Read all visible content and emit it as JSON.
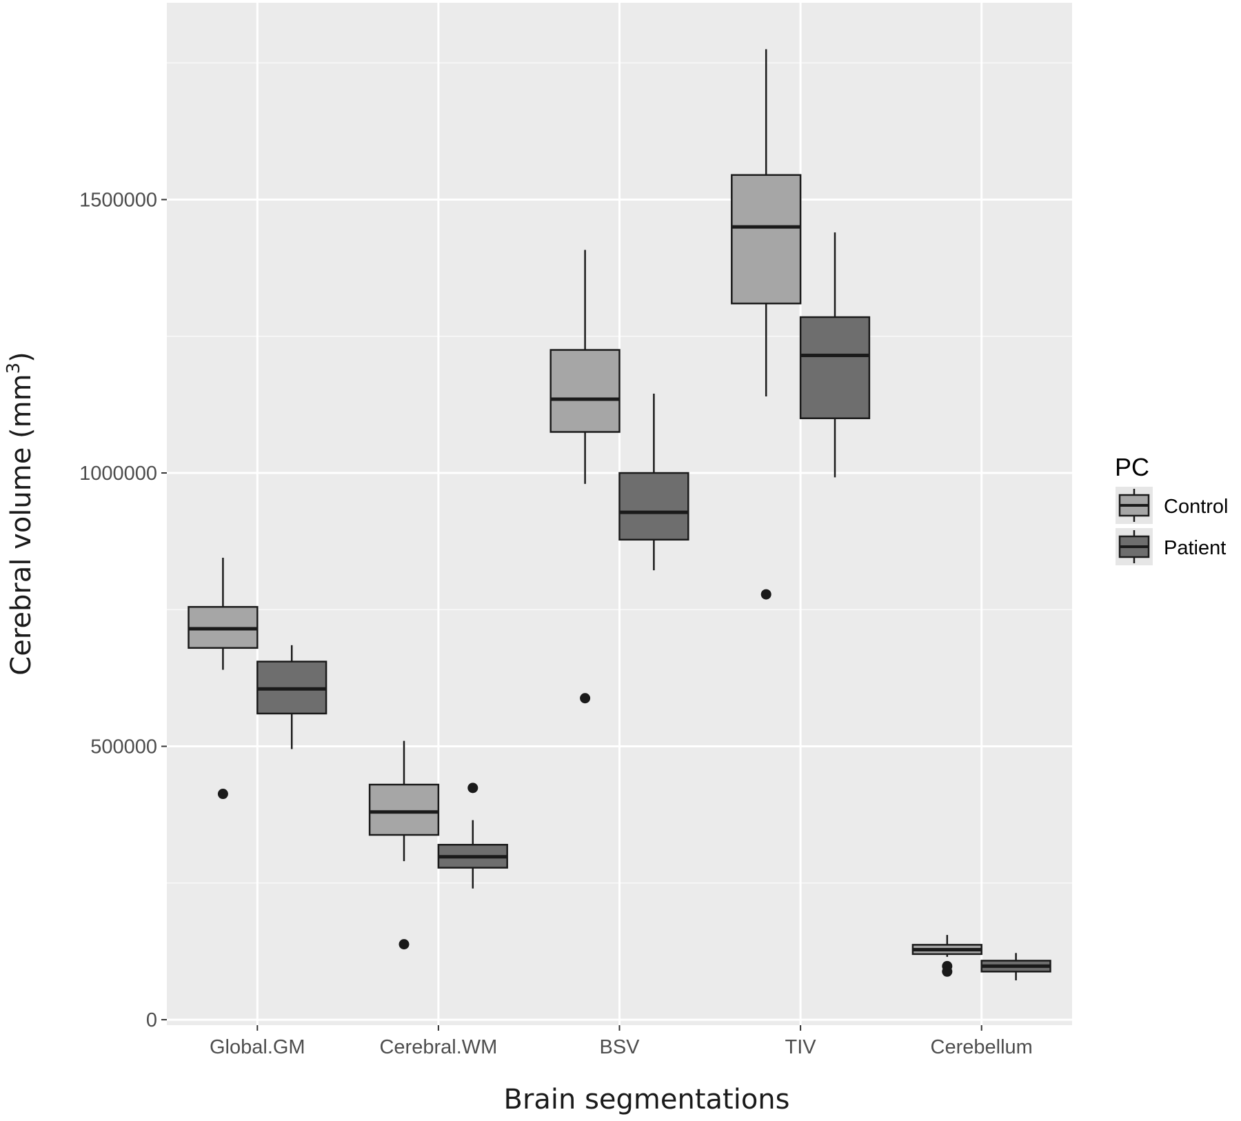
{
  "chart_data": {
    "type": "boxplot",
    "title": "",
    "xlabel": "Brain segmentations",
    "ylabel": "Cerebral volume (mm",
    "ylabel_superscript": "3",
    "ylabel_suffix": ")",
    "categories": [
      "Global.GM",
      "Cerebral.WM",
      "BSV",
      "TIV",
      "Cerebellum"
    ],
    "y_ticks": [
      0,
      500000,
      1000000,
      1500000
    ],
    "y_tick_labels": [
      "0",
      "500000",
      "1000000",
      "1500000"
    ],
    "ylim": [
      -10000,
      1860000
    ],
    "grid": true,
    "legend": {
      "title": "PC",
      "position": "right"
    },
    "colors": {
      "panel": "#ebebeb",
      "grid": "#ffffff",
      "Control": "#a6a6a6",
      "Patient": "#6e6e6e",
      "stroke": "#1a1a1a"
    },
    "series": [
      {
        "name": "Control",
        "boxes": [
          {
            "category": "Global.GM",
            "whisker_low": 640000,
            "q1": 680000,
            "median": 715000,
            "q3": 755000,
            "whisker_high": 845000,
            "outliers": [
              413000
            ]
          },
          {
            "category": "Cerebral.WM",
            "whisker_low": 290000,
            "q1": 338000,
            "median": 380000,
            "q3": 430000,
            "whisker_high": 510000,
            "outliers": [
              138000
            ]
          },
          {
            "category": "BSV",
            "whisker_low": 980000,
            "q1": 1075000,
            "median": 1135000,
            "q3": 1225000,
            "whisker_high": 1408000,
            "outliers": [
              588000
            ]
          },
          {
            "category": "TIV",
            "whisker_low": 1140000,
            "q1": 1310000,
            "median": 1450000,
            "q3": 1545000,
            "whisker_high": 1775000,
            "outliers": [
              778000
            ]
          },
          {
            "category": "Cerebellum",
            "whisker_low": 115000,
            "q1": 120000,
            "median": 128000,
            "q3": 137000,
            "whisker_high": 155000,
            "outliers": [
              98000,
              88000
            ]
          }
        ]
      },
      {
        "name": "Patient",
        "boxes": [
          {
            "category": "Global.GM",
            "whisker_low": 495000,
            "q1": 560000,
            "median": 605000,
            "q3": 655000,
            "whisker_high": 685000,
            "outliers": []
          },
          {
            "category": "Cerebral.WM",
            "whisker_low": 240000,
            "q1": 278000,
            "median": 298000,
            "q3": 320000,
            "whisker_high": 365000,
            "outliers": [
              424000
            ]
          },
          {
            "category": "BSV",
            "whisker_low": 822000,
            "q1": 878000,
            "median": 928000,
            "q3": 1000000,
            "whisker_high": 1145000,
            "outliers": []
          },
          {
            "category": "TIV",
            "whisker_low": 992000,
            "q1": 1100000,
            "median": 1215000,
            "q3": 1285000,
            "whisker_high": 1440000,
            "outliers": []
          },
          {
            "category": "Cerebellum",
            "whisker_low": 72000,
            "q1": 88000,
            "median": 98000,
            "q3": 108000,
            "whisker_high": 122000,
            "outliers": []
          }
        ]
      }
    ]
  }
}
